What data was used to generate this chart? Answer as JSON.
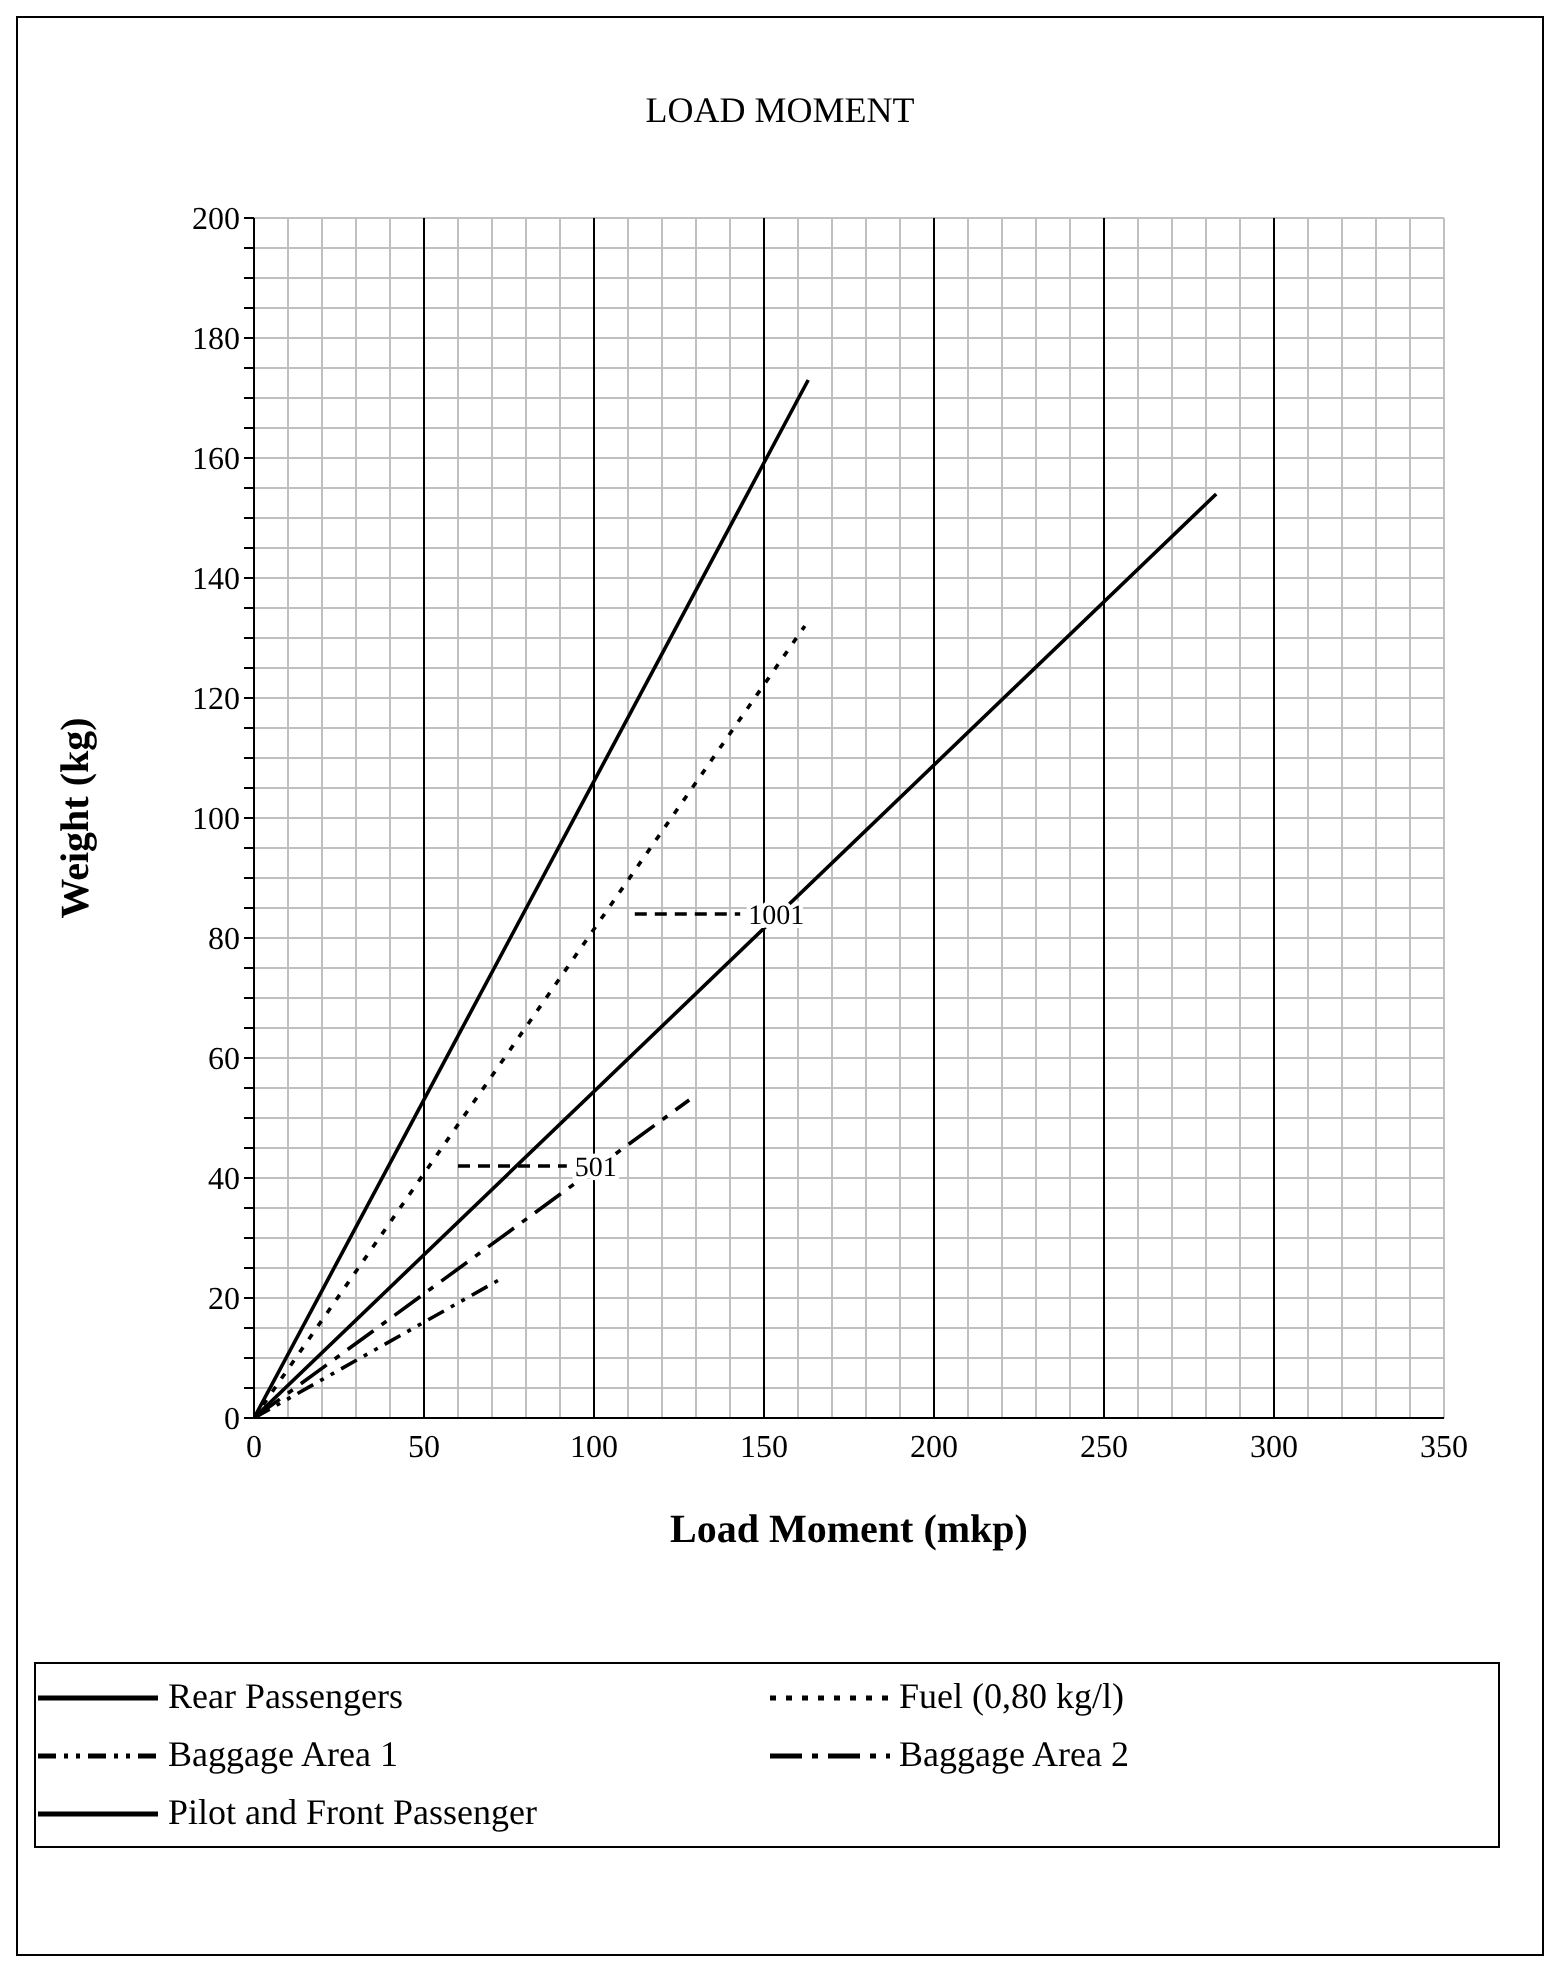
{
  "chart_data": {
    "type": "line",
    "title": "LOAD MOMENT",
    "xlabel": "Load Moment (mkp)",
    "ylabel": "Weight (kg)",
    "xlim": [
      0,
      350
    ],
    "ylim": [
      0,
      200
    ],
    "xticks": [
      0,
      {
        "value": 10,
        "label": null
      },
      {
        "value": 20,
        "label": null
      },
      {
        "value": 30,
        "label": null
      },
      {
        "value": 40,
        "label": null
      },
      50,
      {
        "value": 60,
        "label": null
      },
      {
        "value": 70,
        "label": null
      },
      {
        "value": 80,
        "label": null
      },
      {
        "value": 90,
        "label": null
      },
      100,
      {
        "value": 110,
        "label": null
      },
      {
        "value": 120,
        "label": null
      },
      {
        "value": 130,
        "label": null
      },
      {
        "value": 140,
        "label": null
      },
      150,
      {
        "value": 160,
        "label": null
      },
      {
        "value": 170,
        "label": null
      },
      {
        "value": 180,
        "label": null
      },
      {
        "value": 190,
        "label": null
      },
      200,
      {
        "value": 210,
        "label": null
      },
      {
        "value": 220,
        "label": null
      },
      {
        "value": 230,
        "label": null
      },
      {
        "value": 240,
        "label": null
      },
      250,
      {
        "value": 260,
        "label": null
      },
      {
        "value": 270,
        "label": null
      },
      {
        "value": 280,
        "label": null
      },
      {
        "value": 290,
        "label": null
      },
      300,
      {
        "value": 310,
        "label": null
      },
      {
        "value": 320,
        "label": null
      },
      {
        "value": 330,
        "label": null
      },
      {
        "value": 340,
        "label": null
      },
      350
    ],
    "yticks": [
      0,
      {
        "value": 5,
        "label": null
      },
      {
        "value": 10,
        "label": null
      },
      {
        "value": 15,
        "label": null
      },
      20,
      {
        "value": 25,
        "label": null
      },
      {
        "value": 30,
        "label": null
      },
      {
        "value": 35,
        "label": null
      },
      40,
      {
        "value": 45,
        "label": null
      },
      {
        "value": 50,
        "label": null
      },
      {
        "value": 55,
        "label": null
      },
      60,
      {
        "value": 65,
        "label": null
      },
      {
        "value": 70,
        "label": null
      },
      {
        "value": 75,
        "label": null
      },
      80,
      {
        "value": 85,
        "label": null
      },
      {
        "value": 90,
        "label": null
      },
      {
        "value": 95,
        "label": null
      },
      100,
      {
        "value": 105,
        "label": null
      },
      {
        "value": 110,
        "label": null
      },
      {
        "value": 115,
        "label": null
      },
      120,
      {
        "value": 125,
        "label": null
      },
      {
        "value": 130,
        "label": null
      },
      {
        "value": 135,
        "label": null
      },
      140,
      {
        "value": 145,
        "label": null
      },
      {
        "value": 150,
        "label": null
      },
      {
        "value": 155,
        "label": null
      },
      160,
      {
        "value": 165,
        "label": null
      },
      {
        "value": 170,
        "label": null
      },
      {
        "value": 175,
        "label": null
      },
      180,
      {
        "value": 185,
        "label": null
      },
      {
        "value": 190,
        "label": null
      },
      {
        "value": 195,
        "label": null
      },
      200
    ],
    "grid": true,
    "legend": "bottom",
    "series": [
      {
        "name": "Rear Passengers",
        "color": "#000000",
        "line_style": "solid",
        "x": [
          0,
          283
        ],
        "values": [
          0,
          154
        ]
      },
      {
        "name": "Fuel (0,80 kg/l)",
        "color": "#000000",
        "line_style": "dotted",
        "x": [
          0,
          162
        ],
        "values": [
          0,
          132
        ]
      },
      {
        "name": "Baggage Area 1",
        "color": "#000000",
        "line_style": "dashed",
        "x": [
          0,
          72
        ],
        "values": [
          0,
          23
        ]
      },
      {
        "name": "Baggage Area 2",
        "color": "#000000",
        "line_style": "dashed",
        "x": [
          0,
          128
        ],
        "values": [
          0,
          53
        ]
      },
      {
        "name": "Pilot and Front Passenger",
        "color": "#000000",
        "line_style": "solid",
        "x": [
          0,
          163
        ],
        "values": [
          0,
          173
        ]
      },
      {
        "color": "#000000",
        "line_style": "dashed",
        "x": [
          60,
          92
        ],
        "values": [
          42,
          42
        ]
      },
      {
        "color": "#000000",
        "line_style": "dashed",
        "x": [
          112,
          143
        ],
        "values": [
          84,
          84
        ]
      }
    ],
    "annotations": [
      "501",
      "1001"
    ]
  }
}
